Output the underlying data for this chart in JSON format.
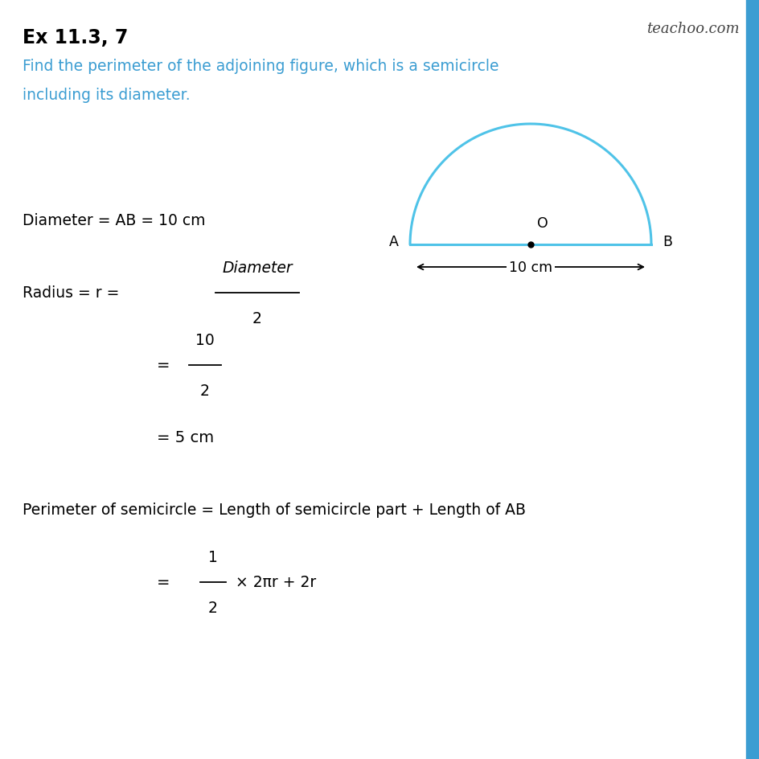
{
  "title": "Ex 11.3, 7",
  "watermark": "teachoo.com",
  "problem_text_line1": "Find the perimeter of the adjoining figure, which is a semicircle",
  "problem_text_line2": "including its diameter.",
  "diameter_text": "Diameter = AB = 10 cm",
  "semicircle_color": "#4FC3E8",
  "semicircle_linewidth": 2.2,
  "bg_color": "#FFFFFF",
  "text_color": "#000000",
  "title_color": "#000000",
  "problem_color": "#3B9DD2",
  "right_bar_color": "#3B9DD2",
  "right_bar_color2": "#5BC8F5",
  "fig_width": 9.45,
  "fig_height": 9.45,
  "dpi": 100
}
